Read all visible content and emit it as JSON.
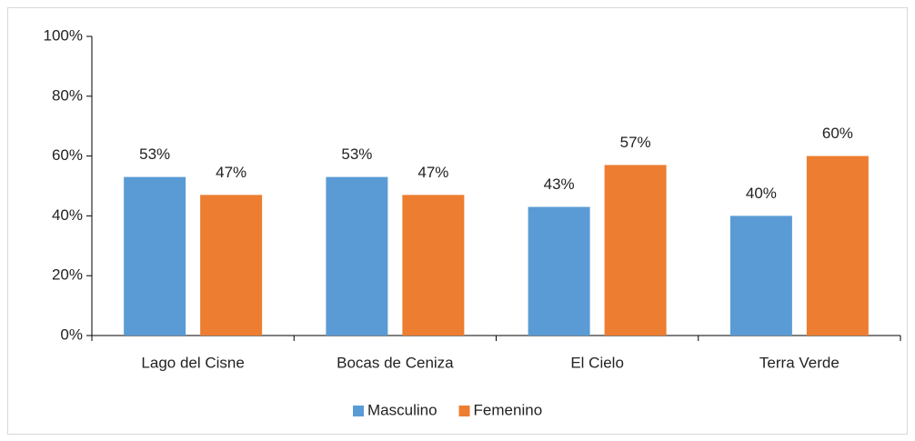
{
  "chart_data": {
    "type": "bar",
    "categories": [
      "Lago del Cisne",
      "Bocas de Ceniza",
      "El Cielo",
      "Terra Verde"
    ],
    "series": [
      {
        "name": "Masculino",
        "color": "#5b9bd5",
        "values": [
          53,
          53,
          43,
          40
        ],
        "value_labels": [
          "53%",
          "53%",
          "43%",
          "40%"
        ]
      },
      {
        "name": "Femenino",
        "color": "#ed7d31",
        "values": [
          47,
          47,
          57,
          60
        ],
        "value_labels": [
          "47%",
          "47%",
          "57%",
          "60%"
        ]
      }
    ],
    "ylim": [
      0,
      100
    ],
    "yticks": [
      {
        "value": 0,
        "label": "0%"
      },
      {
        "value": 20,
        "label": "20%"
      },
      {
        "value": 40,
        "label": "40%"
      },
      {
        "value": 60,
        "label": "60%"
      },
      {
        "value": 80,
        "label": "80%"
      },
      {
        "value": 100,
        "label": "100%"
      }
    ],
    "grid": false,
    "legend": "bottom"
  }
}
